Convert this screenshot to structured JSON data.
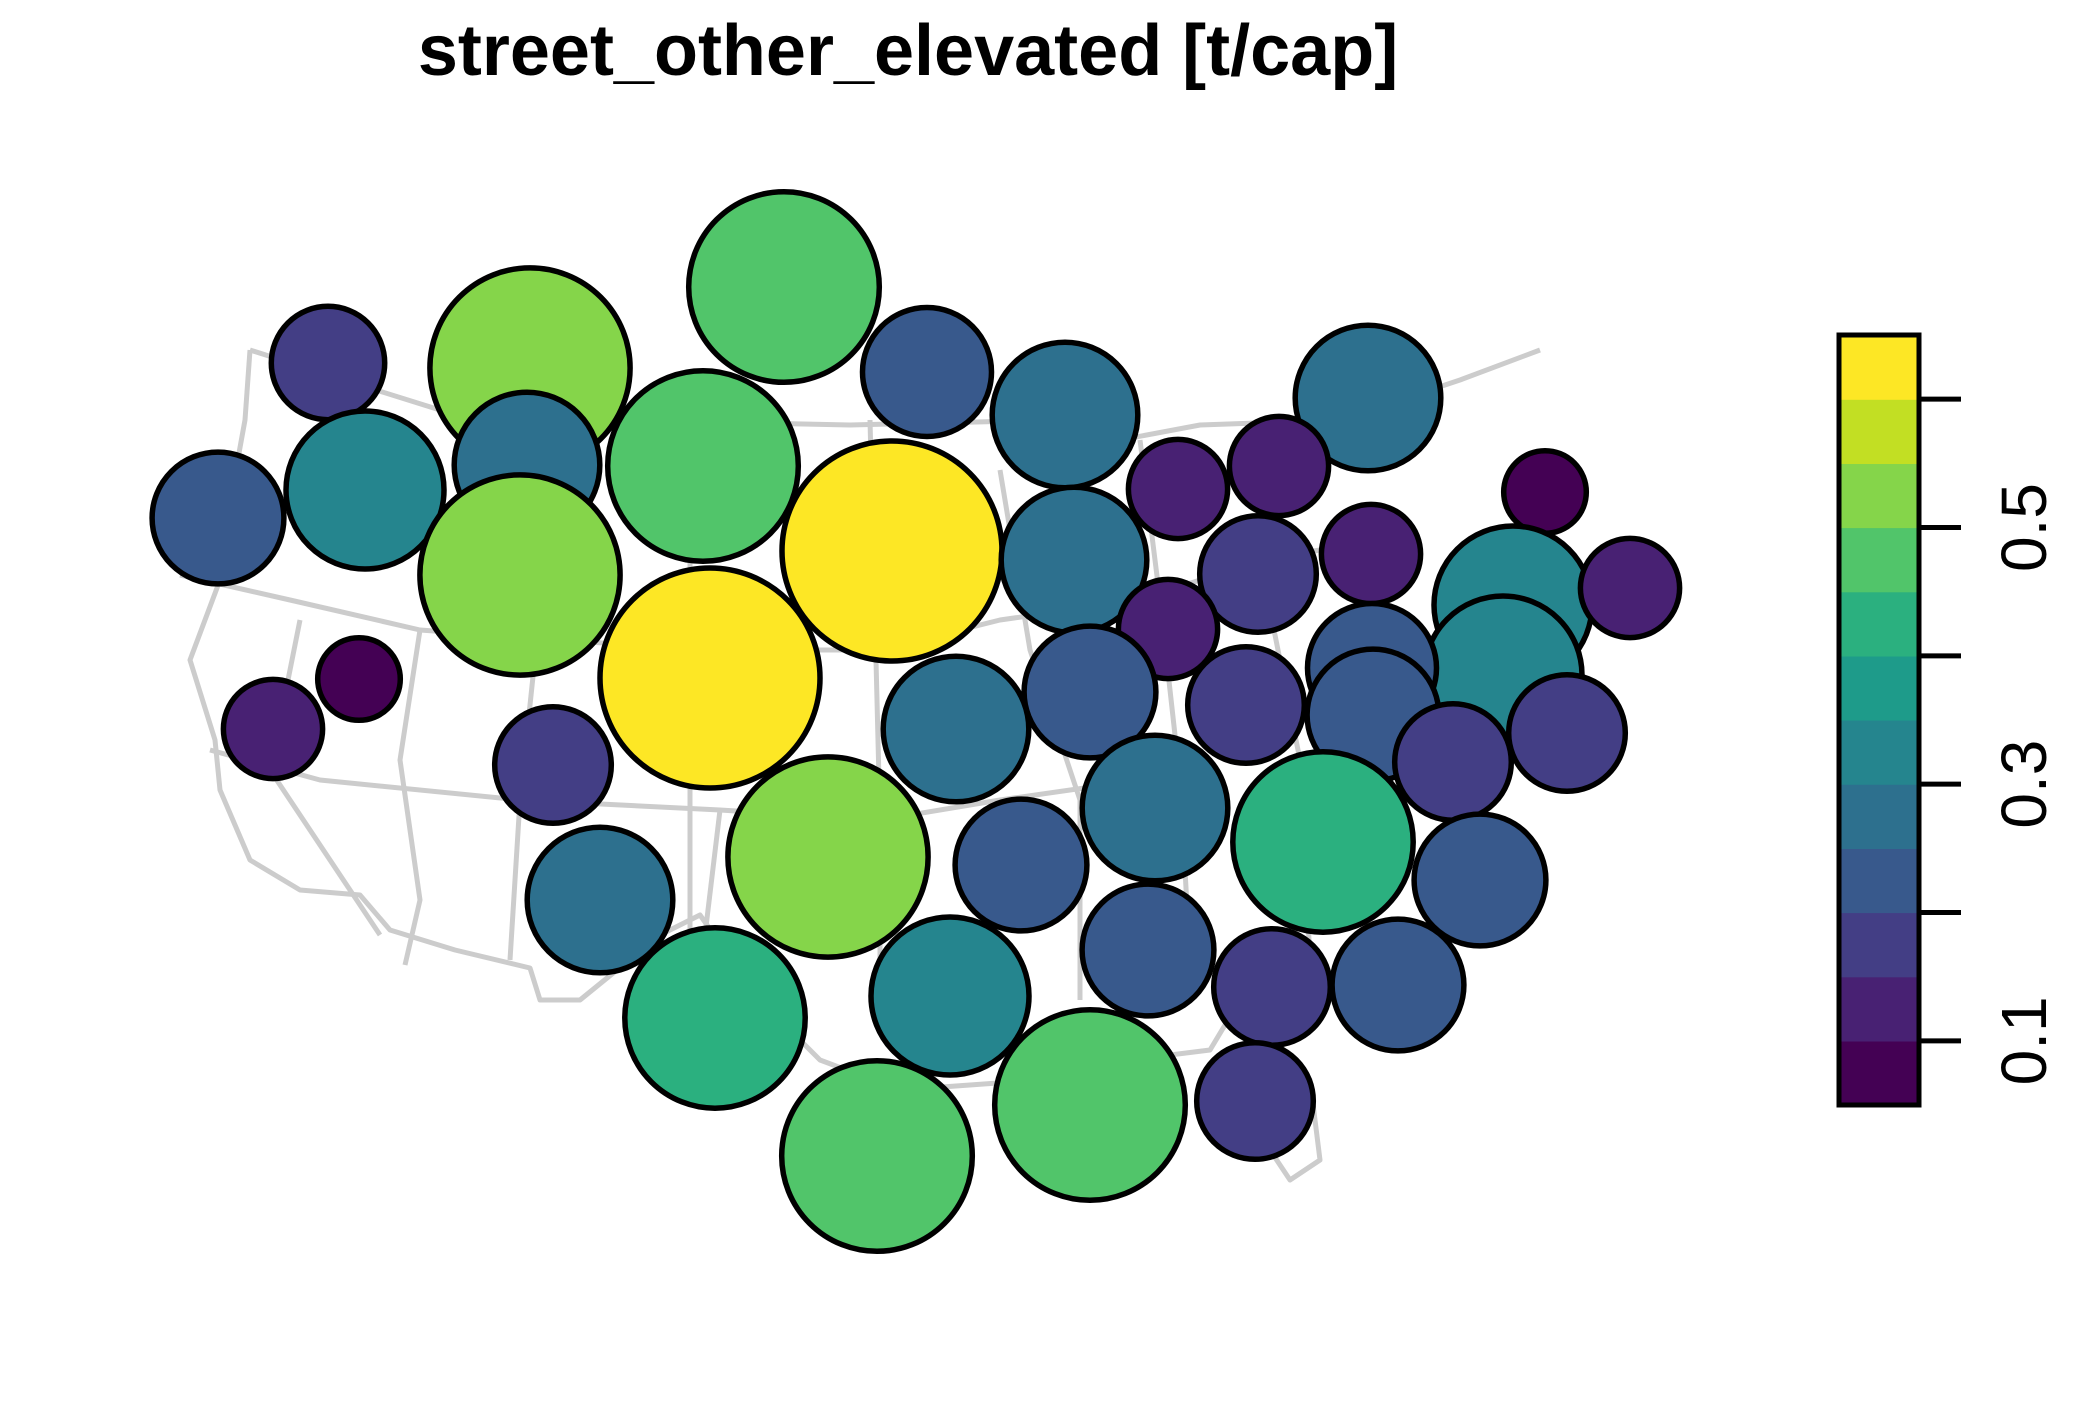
{
  "chart_data": {
    "type": "cartogram",
    "title": "street_other_elevated [t/cap]",
    "legend": {
      "placement": "right",
      "breaks": [
        0.05,
        0.1,
        0.15,
        0.2,
        0.25,
        0.3,
        0.35,
        0.4,
        0.45,
        0.5,
        0.55,
        0.6,
        0.65
      ],
      "colors": [
        "#440154",
        "#482173",
        "#433E85",
        "#38598C",
        "#2D708E",
        "#25858E",
        "#1E9B8A",
        "#2BB07F",
        "#51C56A",
        "#85D54A",
        "#C2DF23",
        "#FDE725"
      ],
      "ticks": [
        0.1,
        0.2,
        0.3,
        0.4,
        0.5,
        0.6
      ],
      "tick_labels": [
        "0.1",
        "",
        "0.3",
        "",
        "0.5",
        ""
      ]
    },
    "regions": [
      {
        "value": 0.17,
        "color": "#433E85"
      },
      {
        "value": 0.53,
        "color": "#85D54A"
      },
      {
        "value": 0.48,
        "color": "#51C56A"
      },
      {
        "value": 0.22,
        "color": "#38598C"
      },
      {
        "value": 0.28,
        "color": "#2D708E"
      },
      {
        "value": 0.23,
        "color": "#38598C"
      },
      {
        "value": 0.33,
        "color": "#25858E"
      },
      {
        "value": 0.28,
        "color": "#2D708E"
      },
      {
        "value": 0.28,
        "color": "#2D708E"
      },
      {
        "value": 0.48,
        "color": "#51C56A"
      },
      {
        "value": 0.64,
        "color": "#FDE725"
      },
      {
        "value": 0.28,
        "color": "#2D708E"
      },
      {
        "value": 0.13,
        "color": "#482173"
      },
      {
        "value": 0.13,
        "color": "#482173"
      },
      {
        "value": 0.13,
        "color": "#482173"
      },
      {
        "value": 0.09,
        "color": "#440154"
      },
      {
        "value": 0.53,
        "color": "#85D54A"
      },
      {
        "value": 0.18,
        "color": "#433E85"
      },
      {
        "value": 0.13,
        "color": "#482173"
      },
      {
        "value": 0.33,
        "color": "#25858E"
      },
      {
        "value": 0.13,
        "color": "#482173"
      },
      {
        "value": 0.09,
        "color": "#440154"
      },
      {
        "value": 0.64,
        "color": "#FDE725"
      },
      {
        "value": 0.13,
        "color": "#482173"
      },
      {
        "value": 0.33,
        "color": "#25858E"
      },
      {
        "value": 0.18,
        "color": "#433E85"
      },
      {
        "value": 0.22,
        "color": "#38598C"
      },
      {
        "value": 0.23,
        "color": "#38598C"
      },
      {
        "value": 0.13,
        "color": "#482173"
      },
      {
        "value": 0.23,
        "color": "#38598C"
      },
      {
        "value": 0.18,
        "color": "#433E85"
      },
      {
        "value": 0.18,
        "color": "#433E85"
      },
      {
        "value": 0.28,
        "color": "#2D708E"
      },
      {
        "value": 0.43,
        "color": "#2BB07F"
      },
      {
        "value": 0.18,
        "color": "#433E85"
      },
      {
        "value": 0.28,
        "color": "#2D708E"
      },
      {
        "value": 0.28,
        "color": "#2D708E"
      },
      {
        "value": 0.53,
        "color": "#85D54A"
      },
      {
        "value": 0.23,
        "color": "#38598C"
      },
      {
        "value": 0.23,
        "color": "#38598C"
      },
      {
        "value": 0.18,
        "color": "#433E85"
      },
      {
        "value": 0.23,
        "color": "#38598C"
      },
      {
        "value": 0.43,
        "color": "#2BB07F"
      },
      {
        "value": 0.33,
        "color": "#25858E"
      },
      {
        "value": 0.23,
        "color": "#38598C"
      },
      {
        "value": 0.48,
        "color": "#51C56A"
      },
      {
        "value": 0.48,
        "color": "#51C56A"
      },
      {
        "value": 0.18,
        "color": "#433E85"
      }
    ]
  }
}
